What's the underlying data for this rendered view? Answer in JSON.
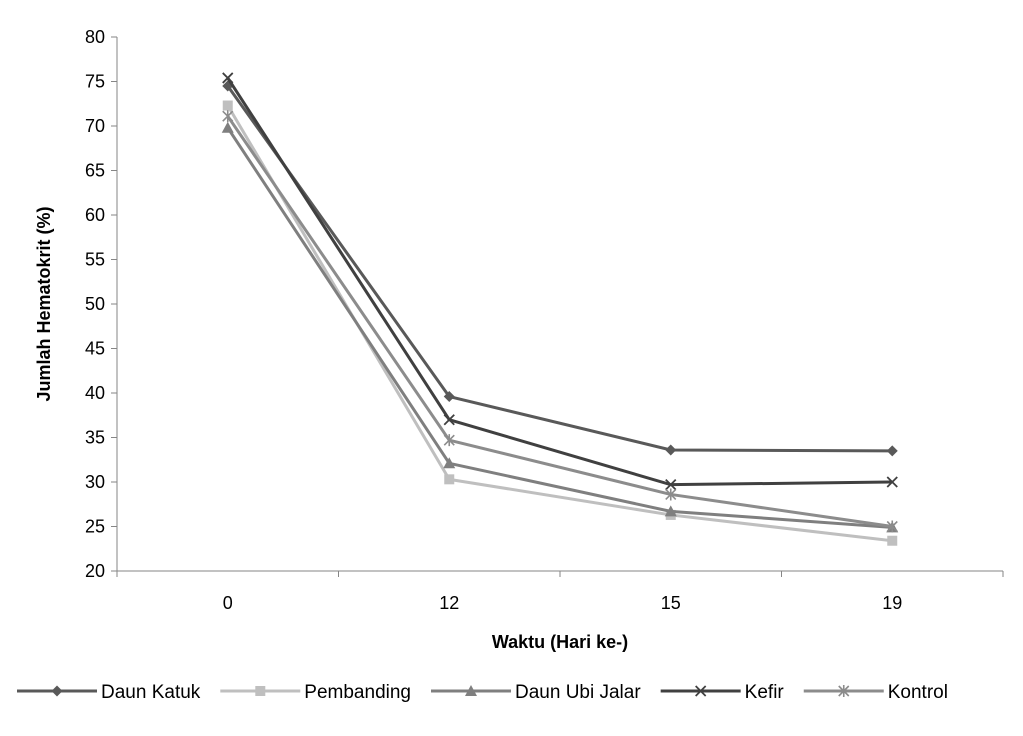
{
  "chart_data": {
    "type": "line",
    "title": "",
    "xlabel": "Waktu (Hari ke-)",
    "ylabel": "Jumlah Hematokrit (%)",
    "categories": [
      "0",
      "12",
      "15",
      "19"
    ],
    "ylim": [
      20,
      80
    ],
    "ytick_step": 5,
    "grid": false,
    "legend_position": "bottom",
    "series": [
      {
        "name": "Daun Katuk",
        "values": [
          74.5,
          39.6,
          33.6,
          33.5
        ],
        "color": "#595959",
        "marker": "diamond"
      },
      {
        "name": "Pembanding",
        "values": [
          72.3,
          30.3,
          26.3,
          23.4
        ],
        "color": "#bfbfbf",
        "marker": "square"
      },
      {
        "name": "Daun Ubi Jalar",
        "values": [
          69.8,
          32.1,
          26.7,
          24.9
        ],
        "color": "#7f7f7f",
        "marker": "triangle"
      },
      {
        "name": "Kefir",
        "values": [
          75.4,
          37.0,
          29.7,
          30.0
        ],
        "color": "#404040",
        "marker": "x"
      },
      {
        "name": "Kontrol",
        "values": [
          71.1,
          34.7,
          28.6,
          25.0
        ],
        "color": "#8c8c8c",
        "marker": "star"
      }
    ]
  }
}
